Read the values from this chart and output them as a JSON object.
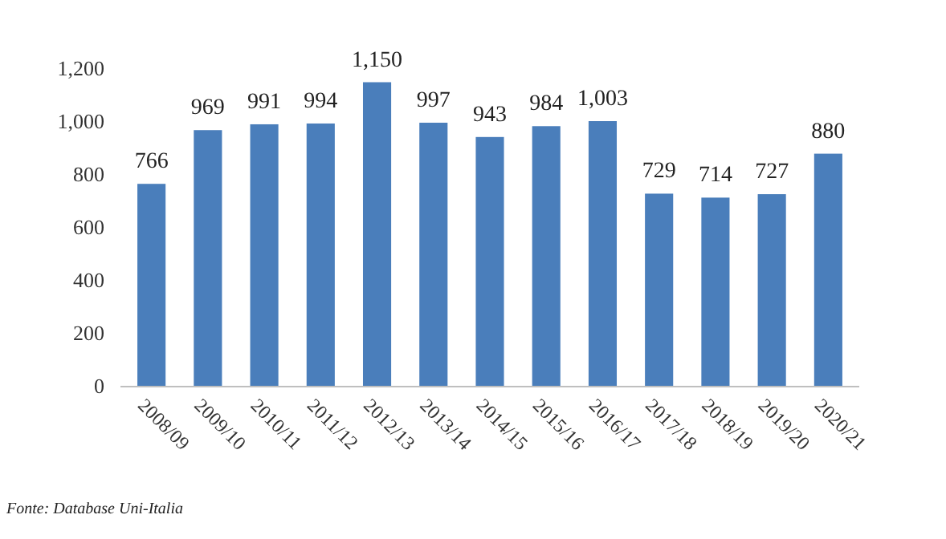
{
  "chart_data": {
    "type": "bar",
    "categories": [
      "2008/09",
      "2009/10",
      "2010/11",
      "2011/12",
      "2012/13",
      "2013/14",
      "2014/15",
      "2015/16",
      "2016/17",
      "2017/18",
      "2018/19",
      "2019/20",
      "2020/21"
    ],
    "values": [
      766,
      969,
      991,
      994,
      1150,
      997,
      943,
      984,
      1003,
      729,
      714,
      727,
      880
    ],
    "value_labels": [
      "766",
      "969",
      "991",
      "994",
      "1,150",
      "997",
      "943",
      "984",
      "1,003",
      "729",
      "714",
      "727",
      "880"
    ],
    "color": "#4a7ebb",
    "ylim": [
      0,
      1200
    ],
    "yticks": [
      {
        "value": 0,
        "label": "0"
      },
      {
        "value": 200,
        "label": "200"
      },
      {
        "value": 400,
        "label": "400"
      },
      {
        "value": 600,
        "label": "600"
      },
      {
        "value": 800,
        "label": "800"
      },
      {
        "value": 1000,
        "label": "1,000"
      },
      {
        "value": 1200,
        "label": "1,200"
      }
    ],
    "grid": false,
    "annotations": [
      "Fonte: Database Uni-Italia"
    ]
  }
}
